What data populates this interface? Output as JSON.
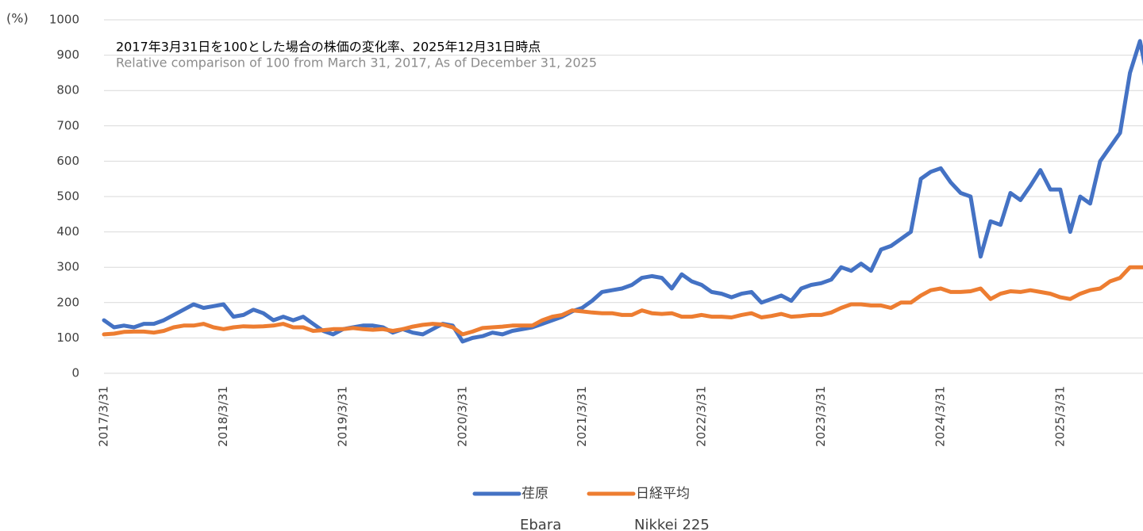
{
  "chart_data": {
    "type": "line",
    "title": "2017年3月31日を100とした場合の株価の変化率、2025年12月31日時点",
    "subtitle": "Relative comparison of 100 from March 31, 2017, As of December 31, 2025",
    "y_label": "(%)",
    "categories": [
      "2017/3/31",
      null,
      null,
      null,
      null,
      null,
      null,
      null,
      null,
      null,
      null,
      null,
      "2018/3/31",
      null,
      null,
      null,
      null,
      null,
      null,
      null,
      null,
      null,
      null,
      null,
      "2019/3/31",
      null,
      null,
      null,
      null,
      null,
      null,
      null,
      null,
      null,
      null,
      null,
      "2020/3/31",
      null,
      null,
      null,
      null,
      null,
      null,
      null,
      null,
      null,
      null,
      null,
      "2021/3/31",
      null,
      null,
      null,
      null,
      null,
      null,
      null,
      null,
      null,
      null,
      null,
      "2022/3/31",
      null,
      null,
      null,
      null,
      null,
      null,
      null,
      null,
      null,
      null,
      null,
      "2023/3/31",
      null,
      null,
      null,
      null,
      null,
      null,
      null,
      null,
      null,
      null,
      null,
      "2024/3/31",
      null,
      null,
      null,
      null,
      null,
      null,
      null,
      null,
      null,
      null,
      null,
      "2025/3/31",
      null,
      null,
      null,
      null,
      null,
      null,
      null,
      null,
      null
    ],
    "series": [
      {
        "name": "荏原",
        "name_en": "Ebara",
        "color": "#4472c4",
        "values": [
          150,
          130,
          135,
          130,
          140,
          140,
          150,
          165,
          180,
          195,
          185,
          190,
          195,
          160,
          165,
          180,
          170,
          150,
          160,
          150,
          160,
          140,
          120,
          110,
          125,
          130,
          135,
          135,
          130,
          115,
          125,
          115,
          110,
          125,
          140,
          135,
          90,
          100,
          105,
          115,
          110,
          120,
          125,
          130,
          140,
          150,
          160,
          175,
          185,
          205,
          230,
          235,
          240,
          250,
          270,
          275,
          270,
          240,
          280,
          260,
          250,
          230,
          225,
          215,
          225,
          230,
          200,
          210,
          220,
          205,
          240,
          250,
          255,
          265,
          300,
          290,
          310,
          290,
          350,
          360,
          380,
          400,
          550,
          570,
          580,
          540,
          510,
          500,
          330,
          430,
          420,
          510,
          490,
          530,
          575,
          520,
          520,
          400,
          500,
          480,
          600,
          640,
          680,
          850,
          940,
          800
        ]
      },
      {
        "name": "日経平均",
        "name_en": "Nikkei 225",
        "color": "#ed7d31",
        "values": [
          110,
          112,
          117,
          118,
          118,
          115,
          120,
          130,
          135,
          135,
          140,
          130,
          125,
          130,
          133,
          132,
          133,
          135,
          140,
          130,
          130,
          120,
          122,
          125,
          125,
          128,
          125,
          123,
          125,
          120,
          125,
          132,
          137,
          140,
          138,
          130,
          110,
          118,
          128,
          130,
          132,
          135,
          135,
          135,
          150,
          160,
          165,
          178,
          175,
          172,
          170,
          170,
          165,
          165,
          178,
          170,
          168,
          170,
          160,
          160,
          165,
          160,
          160,
          158,
          165,
          170,
          158,
          162,
          168,
          160,
          162,
          165,
          165,
          172,
          185,
          195,
          195,
          192,
          192,
          185,
          200,
          200,
          220,
          235,
          240,
          230,
          230,
          232,
          240,
          210,
          225,
          232,
          230,
          235,
          230,
          225,
          215,
          210,
          225,
          235,
          240,
          260,
          270,
          300,
          300,
          300
        ]
      }
    ],
    "ylim": [
      0,
      1000
    ],
    "yticks": [
      0,
      100,
      200,
      300,
      400,
      500,
      600,
      700,
      800,
      900,
      1000
    ],
    "grid": true,
    "legend": "bottom"
  }
}
